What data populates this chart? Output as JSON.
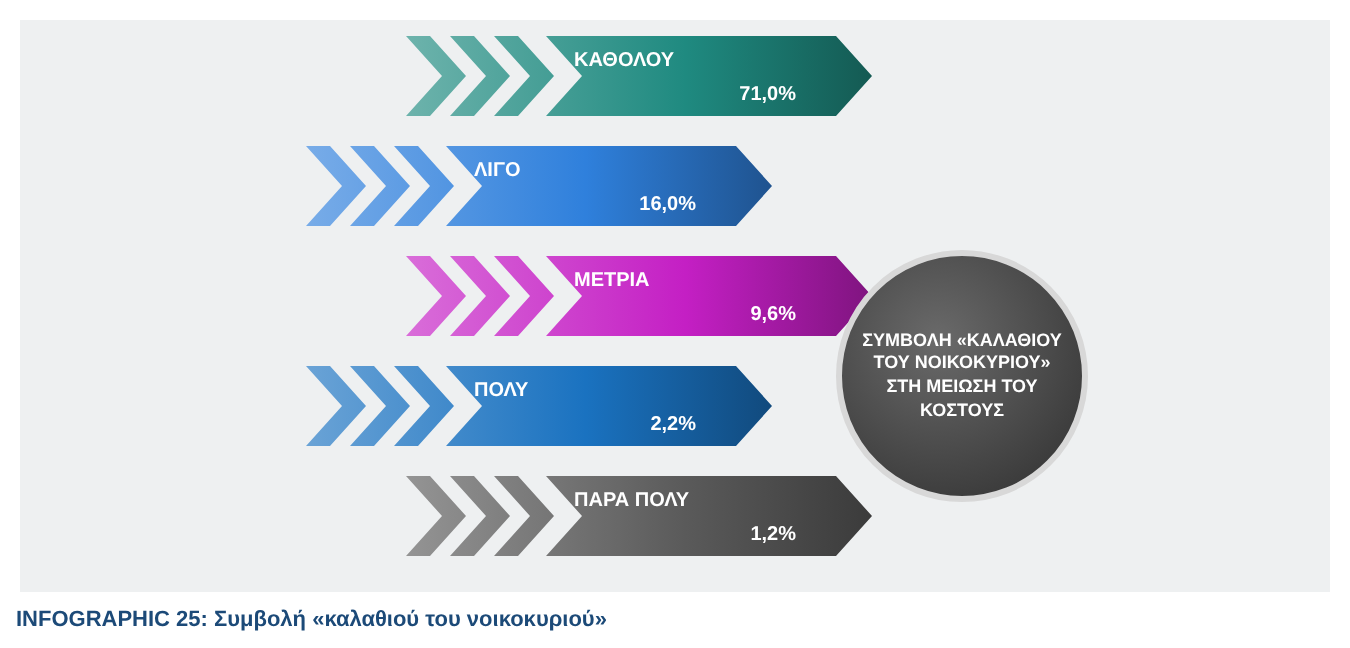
{
  "chart_data": {
    "type": "other",
    "title": "ΣΥΜΒΟΛΗ «ΚΑΛΑΘΙΟΥ ΤΟΥ ΝΟΙΚΟΚΥΡΙΟΥ» ΣΤΗ ΜΕΙΩΣΗ ΤΟΥ ΚΟΣΤΟΥΣ",
    "categories": [
      "ΚΑΘΟΛΟΥ",
      "ΛΙΓΟ",
      "ΜΕΤΡΙΑ",
      "ΠΟΛΥ",
      "ΠΑΡΑ ΠΟΛΥ"
    ],
    "values": [
      71.0,
      16.0,
      9.6,
      2.2,
      1.2
    ],
    "value_labels": [
      "71,0%",
      "16,0%",
      "9,6%",
      "2,2%",
      "1,2%"
    ],
    "colors": [
      "#1f8a80",
      "#2f80dc",
      "#c41fc4",
      "#1a72c0",
      "#5a5a5a"
    ],
    "annotations": [
      "INFOGRAPHIC 25: Συμβολή «καλαθιού του νοικοκυριού»"
    ]
  }
}
